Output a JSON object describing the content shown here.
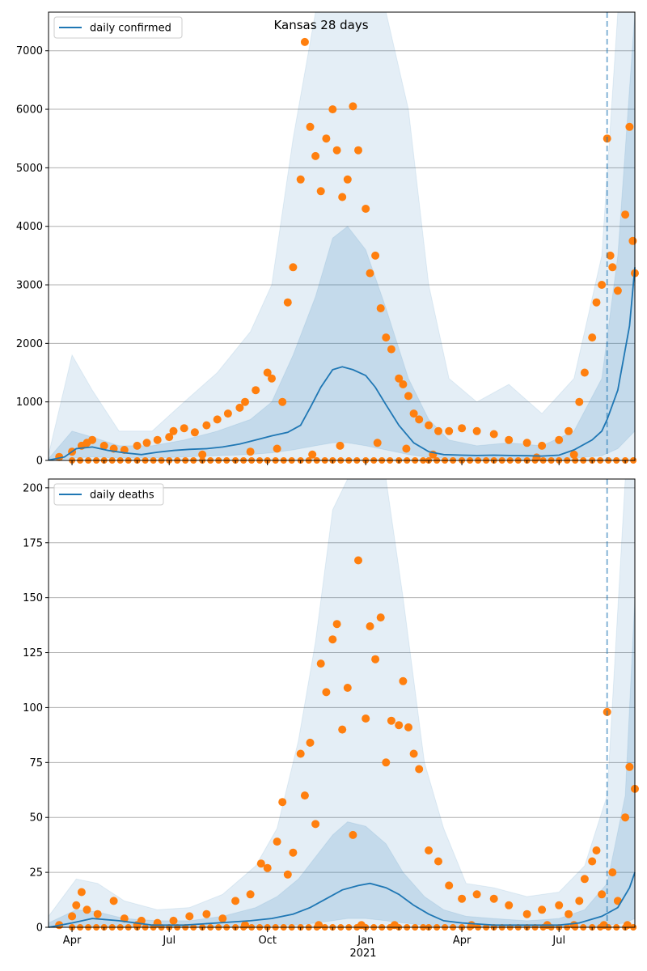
{
  "chart_data": [
    {
      "type": "line",
      "title": "Kansas 28 days",
      "legend": {
        "label": "daily confirmed",
        "placement": "top-left"
      },
      "ylim": [
        0,
        7660
      ],
      "y_ticks": [
        0,
        1000,
        2000,
        3000,
        4000,
        5000,
        6000,
        7000
      ],
      "grid": "y",
      "colors": {
        "line": "#1f77b4",
        "points": "#ff7f0e",
        "band": "#1f77b4"
      },
      "forecast_start": "2021-08-15",
      "line": {
        "x": [
          "2020-03-10",
          "2020-03-25",
          "2020-04-05",
          "2020-04-20",
          "2020-05-05",
          "2020-05-20",
          "2020-06-05",
          "2020-06-20",
          "2020-07-05",
          "2020-07-20",
          "2020-08-05",
          "2020-08-20",
          "2020-09-05",
          "2020-09-20",
          "2020-10-05",
          "2020-10-20",
          "2020-11-01",
          "2020-11-10",
          "2020-11-20",
          "2020-12-01",
          "2020-12-10",
          "2020-12-20",
          "2021-01-01",
          "2021-01-10",
          "2021-01-20",
          "2021-02-01",
          "2021-02-15",
          "2021-03-01",
          "2021-03-15",
          "2021-04-01",
          "2021-04-15",
          "2021-05-01",
          "2021-05-15",
          "2021-06-01",
          "2021-06-15",
          "2021-07-01",
          "2021-07-15",
          "2021-08-01",
          "2021-08-10",
          "2021-08-15",
          "2021-08-25",
          "2021-09-05",
          "2021-09-10"
        ],
        "y": [
          5,
          60,
          200,
          230,
          170,
          130,
          100,
          140,
          170,
          190,
          200,
          230,
          280,
          350,
          420,
          480,
          600,
          900,
          1250,
          1550,
          1600,
          1550,
          1450,
          1250,
          950,
          600,
          300,
          150,
          100,
          90,
          85,
          90,
          85,
          80,
          75,
          90,
          180,
          350,
          500,
          700,
          1200,
          2300,
          3300
        ]
      },
      "bands": [
        {
          "name": "outer",
          "x": [
            "2020-03-10",
            "2020-04-01",
            "2020-04-20",
            "2020-05-15",
            "2020-06-15",
            "2020-07-15",
            "2020-08-15",
            "2020-09-15",
            "2020-10-05",
            "2020-10-25",
            "2020-11-15",
            "2020-12-01",
            "2020-12-15",
            "2021-01-01",
            "2021-01-20",
            "2021-02-10",
            "2021-03-01",
            "2021-03-20",
            "2021-04-15",
            "2021-05-15",
            "2021-06-15",
            "2021-07-15",
            "2021-08-10",
            "2021-08-25",
            "2021-09-10"
          ],
          "high": [
            100,
            1800,
            1200,
            500,
            500,
            1000,
            1500,
            2200,
            3000,
            5500,
            7660,
            7660,
            7660,
            7660,
            7660,
            6000,
            3000,
            1400,
            1000,
            1300,
            800,
            1400,
            3500,
            7660,
            7660
          ],
          "low": [
            0,
            0,
            0,
            0,
            0,
            0,
            0,
            0,
            0,
            0,
            0,
            0,
            0,
            0,
            0,
            0,
            0,
            0,
            0,
            0,
            0,
            0,
            0,
            0,
            0
          ]
        },
        {
          "name": "inner",
          "x": [
            "2020-03-10",
            "2020-04-01",
            "2020-04-20",
            "2020-05-15",
            "2020-06-15",
            "2020-07-15",
            "2020-08-15",
            "2020-09-15",
            "2020-10-05",
            "2020-10-25",
            "2020-11-15",
            "2020-12-01",
            "2020-12-15",
            "2021-01-01",
            "2021-01-20",
            "2021-02-10",
            "2021-03-01",
            "2021-03-20",
            "2021-04-15",
            "2021-05-15",
            "2021-06-15",
            "2021-07-15",
            "2021-08-10",
            "2021-08-25",
            "2021-09-10"
          ],
          "high": [
            30,
            500,
            400,
            250,
            250,
            350,
            500,
            700,
            1000,
            1800,
            2800,
            3800,
            4000,
            3600,
            2600,
            1400,
            700,
            350,
            250,
            300,
            250,
            500,
            1400,
            3500,
            7660
          ],
          "low": [
            0,
            40,
            60,
            40,
            40,
            60,
            80,
            100,
            130,
            180,
            250,
            300,
            300,
            250,
            180,
            100,
            50,
            30,
            25,
            25,
            25,
            40,
            80,
            200,
            500
          ]
        }
      ],
      "points": {
        "x": [
          "2020-03-20",
          "2020-04-01",
          "2020-04-10",
          "2020-04-15",
          "2020-04-20",
          "2020-05-01",
          "2020-05-10",
          "2020-05-20",
          "2020-06-01",
          "2020-06-10",
          "2020-06-20",
          "2020-07-01",
          "2020-07-05",
          "2020-07-15",
          "2020-07-25",
          "2020-08-05",
          "2020-08-15",
          "2020-08-25",
          "2020-09-05",
          "2020-09-10",
          "2020-09-20",
          "2020-10-01",
          "2020-10-05",
          "2020-10-15",
          "2020-10-20",
          "2020-10-25",
          "2020-11-01",
          "2020-11-05",
          "2020-11-10",
          "2020-11-15",
          "2020-11-20",
          "2020-11-25",
          "2020-12-01",
          "2020-12-05",
          "2020-12-10",
          "2020-12-15",
          "2020-12-20",
          "2020-12-25",
          "2021-01-01",
          "2021-01-05",
          "2021-01-10",
          "2021-01-15",
          "2021-01-20",
          "2021-01-25",
          "2021-02-01",
          "2021-02-05",
          "2021-02-10",
          "2021-02-15",
          "2021-02-20",
          "2021-03-01",
          "2021-03-10",
          "2021-03-20",
          "2021-04-01",
          "2021-04-15",
          "2021-05-01",
          "2021-05-15",
          "2021-06-01",
          "2021-06-15",
          "2021-07-01",
          "2021-07-10",
          "2021-07-20",
          "2021-07-25",
          "2021-08-01",
          "2021-08-05",
          "2021-08-10",
          "2021-08-15",
          "2021-08-20",
          "2021-08-25",
          "2021-09-01",
          "2021-09-05",
          "2021-09-10",
          "2020-08-01",
          "2020-09-15",
          "2020-10-10",
          "2020-11-12",
          "2020-12-08",
          "2021-01-12",
          "2021-02-08",
          "2021-03-05",
          "2021-06-10",
          "2021-07-15",
          "2021-08-18",
          "2021-09-08"
        ],
        "y": [
          60,
          150,
          250,
          300,
          350,
          250,
          200,
          180,
          250,
          300,
          350,
          400,
          500,
          550,
          480,
          600,
          700,
          800,
          900,
          1000,
          1200,
          1500,
          1400,
          1000,
          2700,
          3300,
          4800,
          7150,
          5700,
          5200,
          4600,
          5500,
          6000,
          5300,
          4500,
          4800,
          6050,
          5300,
          4300,
          3200,
          3500,
          2600,
          2100,
          1900,
          1400,
          1300,
          1100,
          800,
          700,
          600,
          500,
          500,
          550,
          500,
          450,
          350,
          300,
          250,
          350,
          500,
          1000,
          1500,
          2100,
          2700,
          3000,
          5500,
          3300,
          2900,
          4200,
          5700,
          3200,
          100,
          150,
          200,
          100,
          250,
          300,
          200,
          100,
          50,
          100,
          3500,
          3750
        ]
      }
    },
    {
      "type": "line",
      "title": "",
      "legend": {
        "label": "daily deaths",
        "placement": "top-left"
      },
      "ylim": [
        0,
        204
      ],
      "y_ticks": [
        0,
        25,
        50,
        75,
        100,
        125,
        150,
        175,
        200
      ],
      "x_ticks": [
        "Apr",
        "Jul",
        "Oct",
        "Jan",
        "Apr",
        "Jul"
      ],
      "x_year_label": "2021",
      "grid": "y",
      "colors": {
        "line": "#1f77b4",
        "points": "#ff7f0e",
        "band": "#1f77b4"
      },
      "forecast_start": "2021-08-15",
      "line": {
        "x": [
          "2020-03-10",
          "2020-04-01",
          "2020-04-20",
          "2020-05-15",
          "2020-06-15",
          "2020-07-15",
          "2020-08-15",
          "2020-09-15",
          "2020-10-05",
          "2020-10-25",
          "2020-11-10",
          "2020-11-25",
          "2020-12-10",
          "2020-12-25",
          "2021-01-05",
          "2021-01-20",
          "2021-02-01",
          "2021-02-15",
          "2021-03-01",
          "2021-03-15",
          "2021-04-01",
          "2021-05-01",
          "2021-06-01",
          "2021-07-01",
          "2021-07-20",
          "2021-08-10",
          "2021-08-25",
          "2021-09-05",
          "2021-09-10"
        ],
        "y": [
          0,
          2,
          4,
          3,
          1,
          1,
          2,
          3,
          4,
          6,
          9,
          13,
          17,
          19,
          20,
          18,
          15,
          10,
          6,
          3,
          2,
          1,
          1,
          1,
          2,
          5,
          9,
          18,
          25
        ]
      },
      "bands": [
        {
          "name": "outer",
          "x": [
            "2020-03-10",
            "2020-04-05",
            "2020-04-25",
            "2020-05-20",
            "2020-06-20",
            "2020-07-20",
            "2020-08-20",
            "2020-09-20",
            "2020-10-10",
            "2020-10-30",
            "2020-11-15",
            "2020-12-01",
            "2020-12-15",
            "2021-01-01",
            "2021-01-20",
            "2021-02-05",
            "2021-02-25",
            "2021-03-15",
            "2021-04-05",
            "2021-05-01",
            "2021-06-01",
            "2021-07-01",
            "2021-07-25",
            "2021-08-15",
            "2021-09-01",
            "2021-09-10"
          ],
          "high": [
            5,
            22,
            20,
            12,
            8,
            9,
            15,
            28,
            45,
            85,
            130,
            190,
            204,
            204,
            204,
            150,
            75,
            45,
            20,
            18,
            14,
            16,
            28,
            60,
            204,
            204
          ],
          "low": [
            0,
            0,
            0,
            0,
            0,
            0,
            0,
            0,
            0,
            0,
            0,
            0,
            0,
            0,
            0,
            0,
            0,
            0,
            0,
            0,
            0,
            0,
            0,
            0,
            0,
            0
          ]
        },
        {
          "name": "inner",
          "x": [
            "2020-03-10",
            "2020-04-05",
            "2020-04-25",
            "2020-05-20",
            "2020-06-20",
            "2020-07-20",
            "2020-08-20",
            "2020-09-20",
            "2020-10-10",
            "2020-10-30",
            "2020-11-15",
            "2020-12-01",
            "2020-12-15",
            "2021-01-01",
            "2021-01-20",
            "2021-02-05",
            "2021-02-25",
            "2021-03-15",
            "2021-04-05",
            "2021-05-01",
            "2021-06-01",
            "2021-07-01",
            "2021-07-25",
            "2021-08-15",
            "2021-09-01",
            "2021-09-10"
          ],
          "high": [
            2,
            8,
            7,
            4,
            3,
            3,
            5,
            9,
            14,
            22,
            32,
            42,
            48,
            46,
            38,
            25,
            14,
            8,
            5,
            4,
            3,
            4,
            8,
            20,
            60,
            150
          ],
          "low": [
            0,
            0,
            0,
            0,
            0,
            0,
            0,
            0,
            1,
            1,
            2,
            3,
            4,
            4,
            3,
            2,
            1,
            0,
            0,
            0,
            0,
            0,
            0,
            1,
            2,
            4
          ]
        }
      ],
      "points": {
        "x": [
          "2020-03-20",
          "2020-04-01",
          "2020-04-05",
          "2020-04-10",
          "2020-04-15",
          "2020-04-25",
          "2020-05-10",
          "2020-05-20",
          "2020-06-05",
          "2020-06-20",
          "2020-07-05",
          "2020-07-20",
          "2020-08-05",
          "2020-08-20",
          "2020-09-01",
          "2020-09-15",
          "2020-09-25",
          "2020-10-01",
          "2020-10-10",
          "2020-10-15",
          "2020-10-20",
          "2020-10-25",
          "2020-11-01",
          "2020-11-05",
          "2020-11-10",
          "2020-11-15",
          "2020-11-20",
          "2020-11-25",
          "2020-12-01",
          "2020-12-05",
          "2020-12-10",
          "2020-12-15",
          "2020-12-20",
          "2020-12-25",
          "2021-01-01",
          "2021-01-05",
          "2021-01-10",
          "2021-01-15",
          "2021-01-20",
          "2021-01-25",
          "2021-02-01",
          "2021-02-05",
          "2021-02-10",
          "2021-02-15",
          "2021-02-20",
          "2021-03-01",
          "2021-03-10",
          "2021-03-20",
          "2021-04-01",
          "2021-04-15",
          "2021-05-01",
          "2021-05-15",
          "2021-06-01",
          "2021-06-15",
          "2021-07-01",
          "2021-07-10",
          "2021-07-20",
          "2021-07-25",
          "2021-08-01",
          "2021-08-05",
          "2021-08-10",
          "2021-08-15",
          "2021-08-20",
          "2021-08-25",
          "2021-09-01",
          "2021-09-05",
          "2021-09-10",
          "2020-06-01",
          "2020-09-10",
          "2020-11-18",
          "2020-12-28",
          "2021-01-28",
          "2021-04-10",
          "2021-06-20",
          "2021-07-15",
          "2021-08-12",
          "2021-09-03"
        ],
        "y": [
          1,
          5,
          10,
          16,
          8,
          6,
          12,
          4,
          3,
          2,
          3,
          5,
          6,
          4,
          12,
          15,
          29,
          27,
          39,
          57,
          24,
          34,
          79,
          60,
          84,
          47,
          120,
          107,
          131,
          138,
          90,
          109,
          42,
          167,
          95,
          137,
          122,
          141,
          75,
          94,
          92,
          112,
          91,
          79,
          72,
          35,
          30,
          19,
          13,
          15,
          13,
          10,
          6,
          8,
          10,
          6,
          12,
          22,
          30,
          35,
          15,
          98,
          25,
          12,
          50,
          73,
          63,
          1,
          1,
          1,
          1,
          1,
          1,
          1,
          1,
          1,
          1
        ]
      }
    }
  ]
}
